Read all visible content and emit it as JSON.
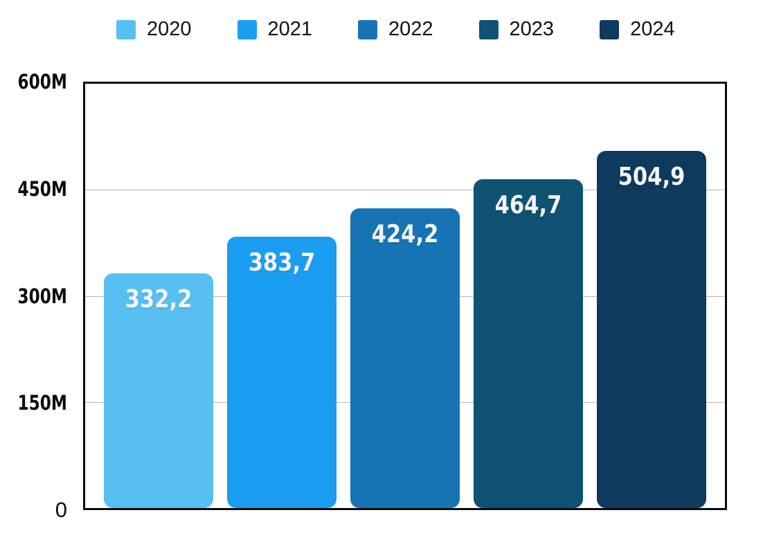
{
  "chart_data": {
    "type": "bar",
    "title": "",
    "xlabel": "",
    "ylabel": "",
    "categories": [
      "2020",
      "2021",
      "2022",
      "2023",
      "2024"
    ],
    "values": [
      332.2,
      383.7,
      424.2,
      464.7,
      504.9
    ],
    "value_labels": [
      "332,2",
      "383,7",
      "424,2",
      "464,7",
      "504,9"
    ],
    "bar_colors": [
      "#57BFF2",
      "#1B9DF1",
      "#1674B4",
      "#0F5273",
      "#0D3A5E"
    ],
    "ylim": [
      0,
      600
    ],
    "y_unit_suffix": "M",
    "y_ticks": [
      "600M",
      "450M",
      "300M",
      "150M",
      "0"
    ],
    "grid": "horizontal",
    "legend_position": "top"
  },
  "legend": {
    "items": [
      {
        "label": "2020",
        "color": "#57BFF2"
      },
      {
        "label": "2021",
        "color": "#1B9DF1"
      },
      {
        "label": "2022",
        "color": "#1674B4"
      },
      {
        "label": "2023",
        "color": "#0F5273"
      },
      {
        "label": "2024",
        "color": "#0D3A5E"
      }
    ]
  },
  "colors": {
    "background": "#FFFFFF",
    "axis_border": "#0A0A0A",
    "gridline": "#B5B5B5",
    "tick_label_text": "#0B0B0B",
    "legend_text": "#121212",
    "bar_value_text": "#F5F4F8"
  }
}
